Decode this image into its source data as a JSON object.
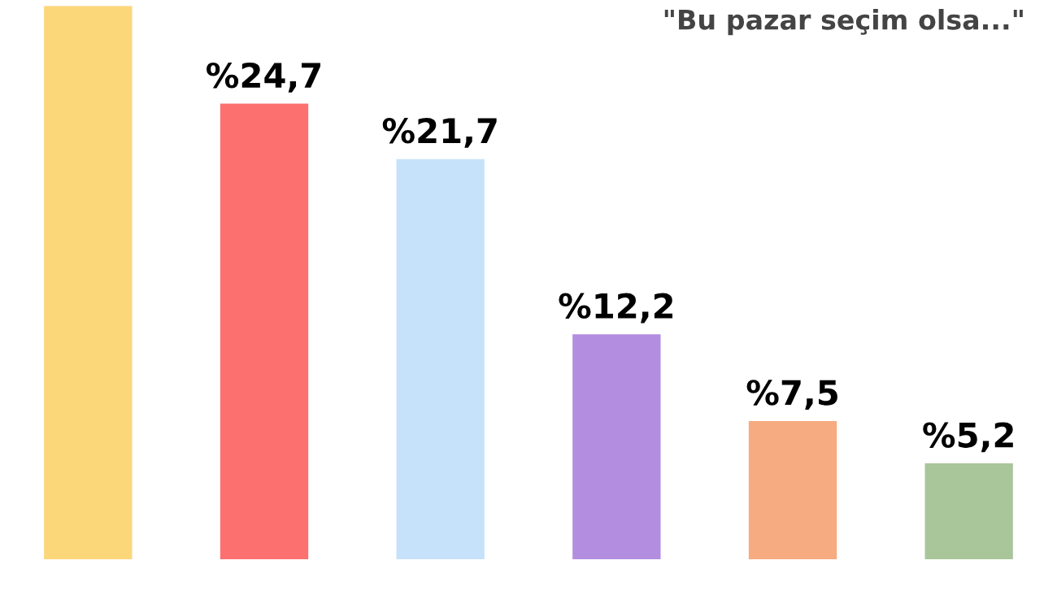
{
  "chart_data": {
    "type": "bar",
    "title": "\"Bu pazar seçim olsa...\"",
    "categories": [
      null,
      null,
      null,
      null,
      null,
      null
    ],
    "values": [
      30,
      24.7,
      21.7,
      12.2,
      7.5,
      5.2
    ],
    "colors": [
      "#fcd77a",
      "#fc7070",
      "#c6e2fa",
      "#b28de0",
      "#f6ab80",
      "#a9c69a"
    ],
    "value_labels": [
      null,
      "%24,7",
      "%21,7",
      "%12,2",
      "%7,5",
      "%5,2"
    ],
    "grid": false,
    "legend": false
  }
}
